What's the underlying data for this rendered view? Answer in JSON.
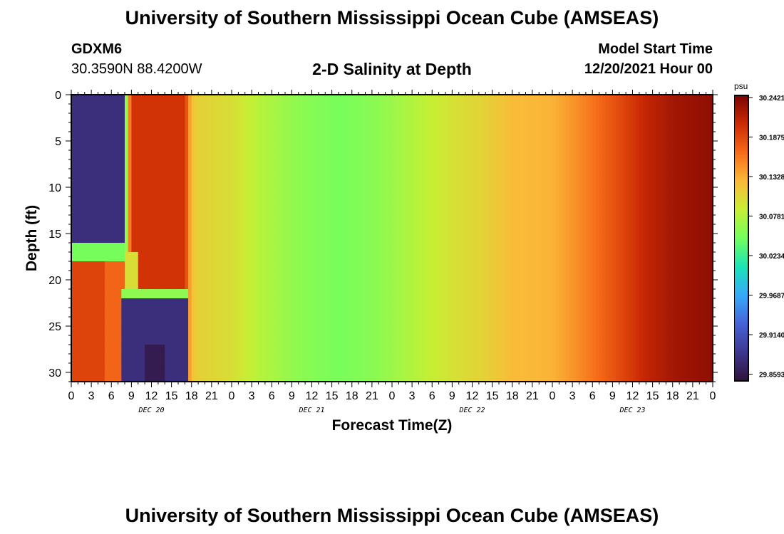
{
  "header": {
    "title": "University of Southern Mississippi Ocean Cube (AMSEAS)",
    "station_id": "GDXM6",
    "coordinates": "30.3590N  88.4200W",
    "plot_title": "2-D Salinity at Depth",
    "model_start_label": "Model Start Time",
    "model_start_value": "12/20/2021 Hour 00"
  },
  "footer": {
    "title": "University of Southern Mississippi Ocean Cube (AMSEAS)"
  },
  "chart_data": {
    "type": "heatmap",
    "xlabel": "Forecast Time(Z)",
    "ylabel": "Depth (ft)",
    "x_hours_range": [
      0,
      96
    ],
    "ylim": [
      0,
      31
    ],
    "y_inverted": true,
    "x_tick_labels": [
      "0",
      "3",
      "6",
      "9",
      "12",
      "15",
      "18",
      "21",
      "0",
      "3",
      "6",
      "9",
      "12",
      "15",
      "18",
      "21",
      "0",
      "3",
      "6",
      "9",
      "12",
      "15",
      "18",
      "21",
      "0",
      "3",
      "6",
      "9",
      "12",
      "15",
      "18",
      "21",
      "0"
    ],
    "y_ticks": [
      0,
      5,
      10,
      15,
      20,
      25,
      30
    ],
    "y_tick_labels": [
      "0",
      "5",
      "10",
      "15",
      "20",
      "25",
      "30"
    ],
    "day_labels": [
      {
        "label": "DEC 20",
        "hour": 12
      },
      {
        "label": "DEC 21",
        "hour": 36
      },
      {
        "label": "DEC 22",
        "hour": 60
      },
      {
        "label": "DEC 23",
        "hour": 84
      }
    ],
    "colorbar": {
      "unit": "psu",
      "min": 29.85,
      "max": 30.245,
      "tick_values": [
        30.2421,
        30.1875,
        30.1328,
        30.0781,
        30.0234,
        29.9687,
        29.914,
        29.8593
      ],
      "tick_labels": [
        "30.2421",
        "30.1875",
        "30.1328",
        "30.0781",
        "30.0234",
        "29.9687",
        "29.9140",
        "29.8593"
      ]
    },
    "surface_salinity_psu_by_hour": [
      [
        0,
        29.88
      ],
      [
        7,
        29.88
      ],
      [
        8,
        30.02
      ],
      [
        9,
        30.2
      ],
      [
        17,
        30.2
      ],
      [
        18,
        30.12
      ],
      [
        19,
        30.11
      ],
      [
        24,
        30.1
      ],
      [
        28,
        30.08
      ],
      [
        34,
        30.06
      ],
      [
        40,
        30.05
      ],
      [
        46,
        30.06
      ],
      [
        52,
        30.08
      ],
      [
        58,
        30.1
      ],
      [
        62,
        30.11
      ],
      [
        66,
        30.125
      ],
      [
        72,
        30.13
      ],
      [
        76,
        30.15
      ],
      [
        82,
        30.185
      ],
      [
        86,
        30.21
      ],
      [
        90,
        30.225
      ],
      [
        96,
        30.235
      ]
    ],
    "anomalies": [
      {
        "hours": [
          0,
          8
        ],
        "depth_ft": [
          0,
          16.5
        ],
        "salinity_psu": 29.88
      },
      {
        "hours": [
          0,
          8
        ],
        "depth_ft": [
          16.5,
          18
        ],
        "salinity_psu": 30.05
      },
      {
        "hours": [
          0,
          5
        ],
        "depth_ft": [
          18,
          31
        ],
        "salinity_psu": 30.19
      },
      {
        "hours": [
          5,
          8
        ],
        "depth_ft": [
          18,
          31
        ],
        "salinity_psu": 30.17
      },
      {
        "hours": [
          8,
          10
        ],
        "depth_ft": [
          17,
          21
        ],
        "salinity_psu": 30.1
      },
      {
        "hours": [
          10,
          17
        ],
        "depth_ft": [
          16,
          21
        ],
        "salinity_psu": 30.2
      },
      {
        "hours": [
          7.5,
          17.5
        ],
        "depth_ft": [
          21,
          22.5
        ],
        "salinity_psu": 30.06
      },
      {
        "hours": [
          7.5,
          17.5
        ],
        "depth_ft": [
          22.5,
          31
        ],
        "salinity_psu": 29.88
      },
      {
        "hours": [
          11,
          14
        ],
        "depth_ft": [
          27,
          31
        ],
        "salinity_psu": 29.86
      }
    ]
  },
  "colors": {
    "background": "#ffffff",
    "colormap": [
      "#30123b",
      "#3e378f",
      "#4662d7",
      "#36aaf9",
      "#1ae4b6",
      "#72fe5e",
      "#c7ef34",
      "#faba39",
      "#f66b19",
      "#cb2a04",
      "#7a0403"
    ]
  }
}
